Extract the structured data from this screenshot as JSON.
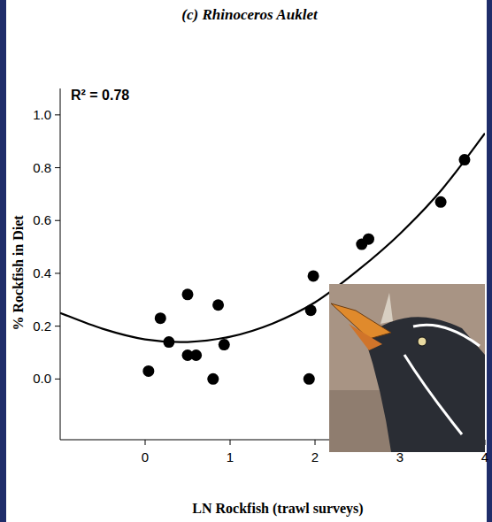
{
  "chart_data": {
    "type": "scatter",
    "title": "(c) Rhinoceros Auklet",
    "annotation": "R² = 0.78",
    "x_label": "LN Rockfish (trawl surveys)",
    "y_label": "% Rockfish in Diet",
    "xlim": [
      -1,
      4
    ],
    "ylim": [
      -0.23,
      1.1
    ],
    "xticks": [
      0,
      1,
      2,
      3,
      4
    ],
    "yticks": [
      {
        "value": 0,
        "label": "0.0"
      },
      0.2,
      0.4,
      0.6,
      0.8,
      {
        "value": 1,
        "label": "1.0"
      }
    ],
    "grid": false,
    "series": [
      {
        "type": "scatter",
        "color": "#000000",
        "marker": "circle",
        "x": [
          0.04,
          0.18,
          0.28,
          0.5,
          0.5,
          0.6,
          0.8,
          0.86,
          0.93,
          1.93,
          1.95,
          1.98,
          2.55,
          2.63,
          3.48,
          3.76
        ],
        "values": [
          0.03,
          0.23,
          0.14,
          0.32,
          0.09,
          0.09,
          0.0,
          0.28,
          0.13,
          0.0,
          0.26,
          0.39,
          0.51,
          0.53,
          0.67,
          0.83
        ]
      },
      {
        "type": "line",
        "color": "#000000",
        "line_style": "solid",
        "x": [
          -1,
          -0.5,
          0,
          0.5,
          1,
          1.5,
          2,
          2.5,
          3,
          3.5,
          4
        ],
        "values": [
          0.25,
          0.19,
          0.15,
          0.14,
          0.16,
          0.21,
          0.29,
          0.41,
          0.55,
          0.72,
          0.93
        ]
      }
    ]
  }
}
